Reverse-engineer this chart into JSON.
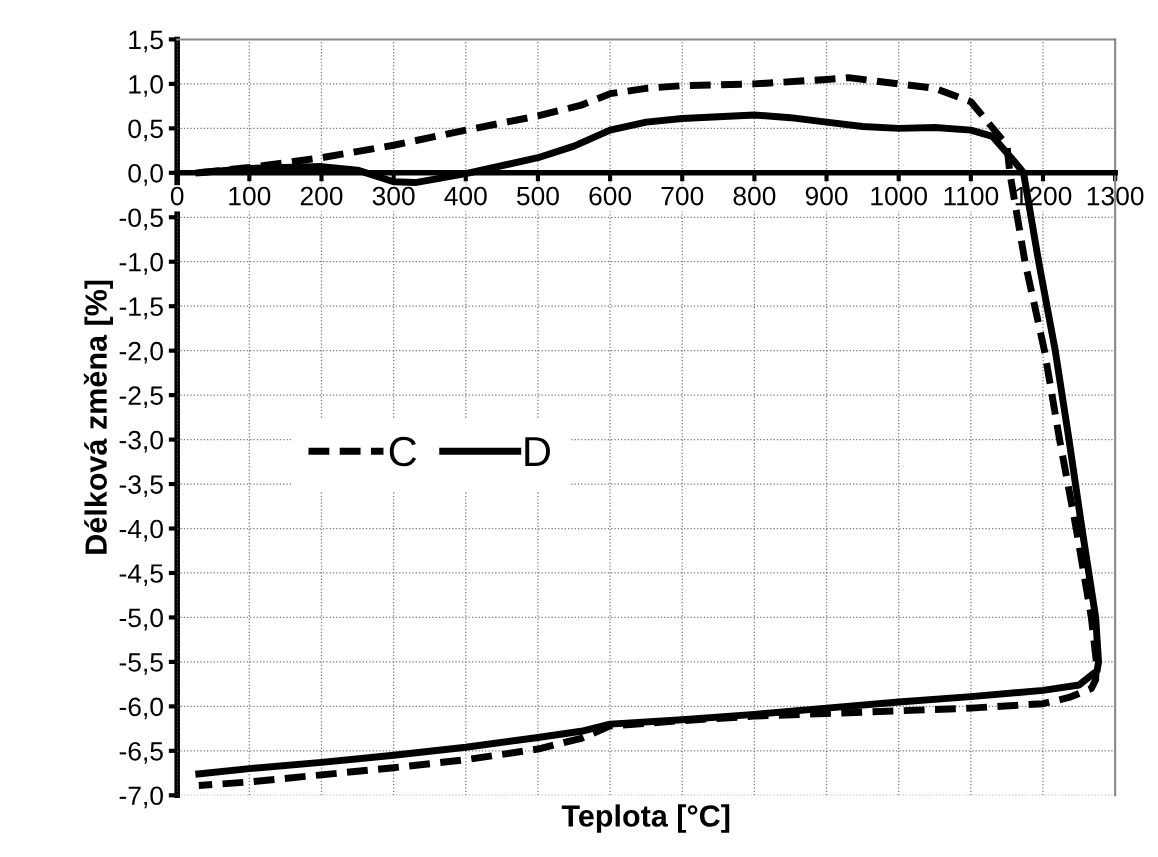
{
  "chart_data": {
    "type": "line",
    "xlabel": "Teplota [°C]",
    "ylabel": "Délková změna [%]",
    "xlim": [
      0,
      1300
    ],
    "xticks": [
      0,
      100,
      200,
      300,
      400,
      500,
      600,
      700,
      800,
      900,
      1000,
      1100,
      1200,
      1300
    ],
    "ylim": [
      -7.0,
      1.5
    ],
    "yticks": [
      {
        "value": 1.5,
        "label": "1,5"
      },
      {
        "value": 1.0,
        "label": "1,0"
      },
      {
        "value": 0.5,
        "label": "0,5"
      },
      {
        "value": 0.0,
        "label": "0,0"
      },
      {
        "value": -0.5,
        "label": "-0,5"
      },
      {
        "value": -1.0,
        "label": "-1,0"
      },
      {
        "value": -1.5,
        "label": "-1,5"
      },
      {
        "value": -2.0,
        "label": "-2,0"
      },
      {
        "value": -2.5,
        "label": "-2,5"
      },
      {
        "value": -3.0,
        "label": "-3,0"
      },
      {
        "value": -3.5,
        "label": "-3,5"
      },
      {
        "value": -4.0,
        "label": "-4,0"
      },
      {
        "value": -4.5,
        "label": "-4,5"
      },
      {
        "value": -5.0,
        "label": "-5,0"
      },
      {
        "value": -5.5,
        "label": "-5,5"
      },
      {
        "value": -6.0,
        "label": "-6,0"
      },
      {
        "value": -6.5,
        "label": "-6,5"
      },
      {
        "value": -7.0,
        "label": "-7,0"
      }
    ],
    "grid": true,
    "legend": "center left",
    "marker": "none",
    "series": [
      {
        "name": "C",
        "color": "#000000",
        "line_style": "dashed",
        "x": [
          30,
          100,
          200,
          300,
          400,
          500,
          560,
          600,
          650,
          700,
          800,
          900,
          930,
          1000,
          1050,
          1100,
          1150,
          1154,
          1175,
          1202,
          1223,
          1246,
          1267,
          1274,
          1273,
          1267,
          1236,
          1200,
          1100,
          1000,
          900,
          800,
          700,
          600,
          560,
          500,
          400,
          300,
          200,
          100,
          30
        ],
        "values": [
          0.0,
          0.06,
          0.17,
          0.31,
          0.48,
          0.64,
          0.76,
          0.89,
          0.95,
          0.98,
          1.0,
          1.05,
          1.07,
          1.0,
          0.95,
          0.8,
          0.31,
          0.0,
          -1.0,
          -2.0,
          -3.0,
          -4.0,
          -5.0,
          -5.5,
          -5.7,
          -5.8,
          -5.9,
          -5.97,
          -6.02,
          -6.05,
          -6.08,
          -6.11,
          -6.16,
          -6.22,
          -6.36,
          -6.48,
          -6.6,
          -6.69,
          -6.77,
          -6.85,
          -6.89
        ]
      },
      {
        "name": "D",
        "color": "#000000",
        "line_style": "solid",
        "x": [
          30,
          100,
          200,
          250,
          300,
          330,
          400,
          500,
          550,
          600,
          650,
          700,
          800,
          850,
          900,
          950,
          1000,
          1050,
          1100,
          1130,
          1160,
          1173,
          1194,
          1217,
          1236,
          1254,
          1273,
          1277,
          1275,
          1270,
          1250,
          1200,
          1100,
          1000,
          900,
          800,
          700,
          600,
          560,
          500,
          400,
          300,
          200,
          100,
          30
        ],
        "values": [
          0.0,
          0.05,
          0.07,
          0.03,
          -0.1,
          -0.11,
          -0.01,
          0.17,
          0.3,
          0.48,
          0.57,
          0.61,
          0.65,
          0.62,
          0.57,
          0.52,
          0.5,
          0.51,
          0.48,
          0.41,
          0.13,
          0.0,
          -1.0,
          -2.0,
          -3.0,
          -4.0,
          -5.0,
          -5.5,
          -5.6,
          -5.63,
          -5.76,
          -5.82,
          -5.89,
          -5.95,
          -6.02,
          -6.09,
          -6.15,
          -6.2,
          -6.28,
          -6.35,
          -6.46,
          -6.55,
          -6.63,
          -6.7,
          -6.76
        ]
      }
    ]
  }
}
